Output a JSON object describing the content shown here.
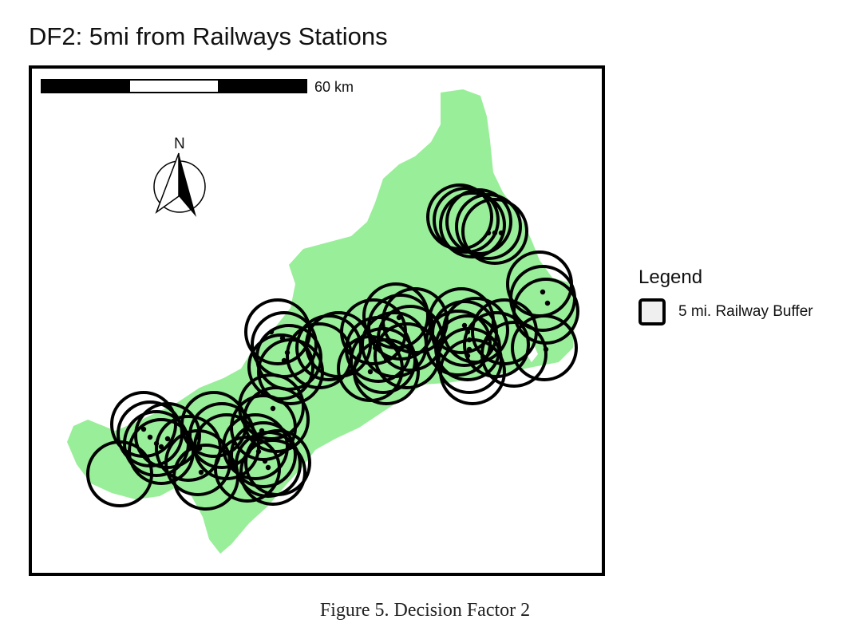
{
  "title": "DF2: 5mi from Railways Stations",
  "map": {
    "scale_bar_label": "60 km",
    "north_label": "N",
    "land_color": "#99ee99",
    "buffer_color": "#000000"
  },
  "legend": {
    "title": "Legend",
    "items": [
      {
        "label": "5 mi. Railway Buffer",
        "fill": "#efefef",
        "stroke": "#000000"
      }
    ]
  },
  "caption": "Figure 5. Decision Factor 2"
}
